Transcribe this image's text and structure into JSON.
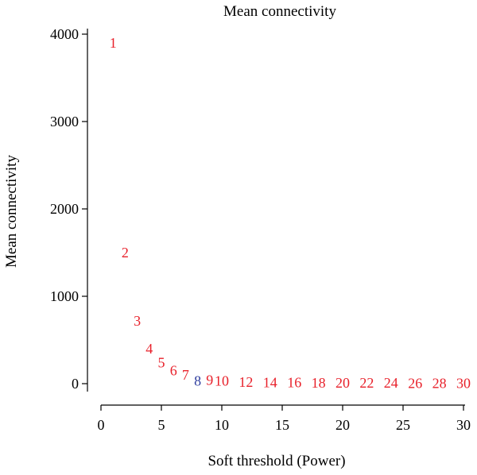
{
  "chart_data": {
    "type": "scatter",
    "title": "Mean connectivity",
    "xlabel": "Soft threshold (Power)",
    "ylabel": "Mean connectivity",
    "xlim": [
      0,
      31
    ],
    "ylim": [
      -150,
      4050
    ],
    "x_ticks": [
      0,
      5,
      10,
      15,
      20,
      25,
      30
    ],
    "y_ticks": [
      0,
      1000,
      2000,
      3000,
      4000
    ],
    "x_tick_labels": [
      "0",
      "5",
      "10",
      "15",
      "20",
      "25",
      "30"
    ],
    "y_tick_labels": [
      "0",
      "1000",
      "2000",
      "3000",
      "4000"
    ],
    "grid": false,
    "highlight_color": "#2e3d9e",
    "point_color": "#e8202a",
    "points": [
      {
        "x": 1,
        "y": 3900,
        "label": "1"
      },
      {
        "x": 2,
        "y": 1500,
        "label": "2"
      },
      {
        "x": 3,
        "y": 720,
        "label": "3"
      },
      {
        "x": 4,
        "y": 400,
        "label": "4"
      },
      {
        "x": 5,
        "y": 240,
        "label": "5"
      },
      {
        "x": 6,
        "y": 150,
        "label": "6"
      },
      {
        "x": 7,
        "y": 100,
        "label": "7"
      },
      {
        "x": 8,
        "y": 60,
        "label": "8",
        "highlight": true
      },
      {
        "x": 9,
        "y": 40,
        "label": "9"
      },
      {
        "x": 10,
        "y": 30,
        "label": "10"
      },
      {
        "x": 12,
        "y": 20,
        "label": "12"
      },
      {
        "x": 14,
        "y": 15,
        "label": "14"
      },
      {
        "x": 16,
        "y": 12,
        "label": "16"
      },
      {
        "x": 18,
        "y": 10,
        "label": "18"
      },
      {
        "x": 20,
        "y": 9,
        "label": "20"
      },
      {
        "x": 22,
        "y": 8,
        "label": "22"
      },
      {
        "x": 24,
        "y": 7,
        "label": "24"
      },
      {
        "x": 26,
        "y": 6,
        "label": "26"
      },
      {
        "x": 28,
        "y": 5,
        "label": "28"
      },
      {
        "x": 30,
        "y": 4,
        "label": "30"
      }
    ]
  }
}
